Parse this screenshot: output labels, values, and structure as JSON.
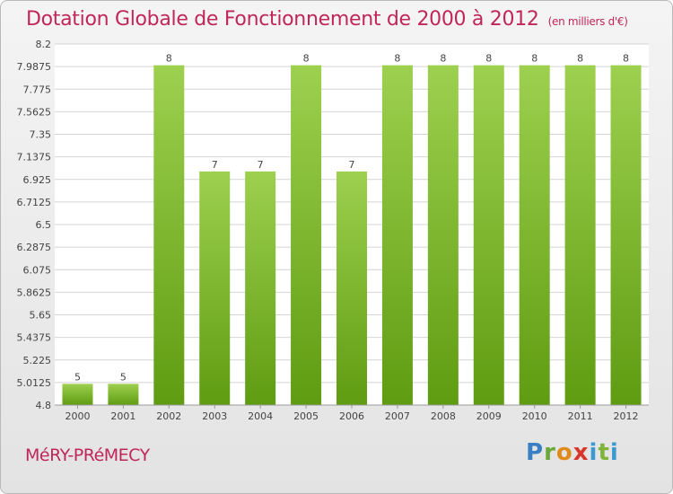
{
  "header": {
    "title": "Dotation Globale de Fonctionnement de 2000 à 2012",
    "units": "(en milliers d'€)"
  },
  "footer": {
    "commune": "MéRY-PRéMECY",
    "brand": "Proxiti"
  },
  "colors": {
    "title": "#c0265b",
    "bar_top": "#9dd04f",
    "bar_bottom": "#5f9c12"
  },
  "chart_data": {
    "type": "bar",
    "categories": [
      "2000",
      "2001",
      "2002",
      "2003",
      "2004",
      "2005",
      "2006",
      "2007",
      "2008",
      "2009",
      "2010",
      "2011",
      "2012"
    ],
    "values": [
      5,
      5,
      8,
      7,
      7,
      8,
      7,
      8,
      8,
      8,
      8,
      8,
      8
    ],
    "data_labels": [
      "5",
      "5",
      "8",
      "7",
      "7",
      "8",
      "7",
      "8",
      "8",
      "8",
      "8",
      "8",
      "8"
    ],
    "title": "Dotation Globale de Fonctionnement de 2000 à 2012",
    "ylim": [
      4.8,
      8.2
    ],
    "yticks": [
      4.8,
      5.0125,
      5.225,
      5.4375,
      5.65,
      5.8625,
      6.075,
      6.2875,
      6.5,
      6.7125,
      6.925,
      7.1375,
      7.35,
      7.5625,
      7.775,
      7.9875,
      8.2
    ],
    "ytick_labels": [
      "4.8",
      "5.0125",
      "5.225",
      "5.4375",
      "5.65",
      "5.8625",
      "6.075",
      "6.2875",
      "6.5",
      "6.7125",
      "6.925",
      "7.1375",
      "7.35",
      "7.5625",
      "7.775",
      "7.9875",
      "8.2"
    ],
    "grid": true,
    "legend": "none"
  }
}
